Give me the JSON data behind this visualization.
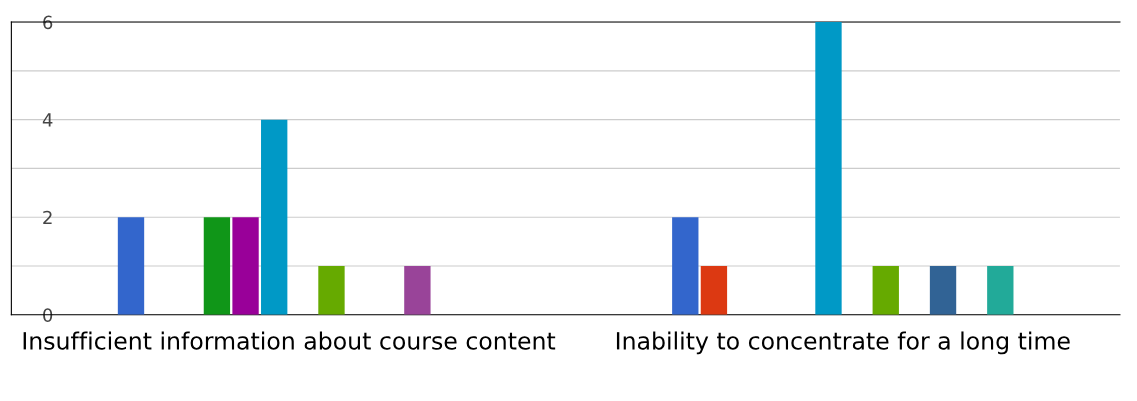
{
  "chart_data": {
    "type": "bar",
    "categories": [
      "Insufficient information about course content",
      "Inability to concentrate for a long time"
    ],
    "series": [
      {
        "color": "#3366cc",
        "values": [
          2,
          2
        ]
      },
      {
        "color": "#dc3912",
        "values": [
          0,
          1
        ]
      },
      {
        "color": "#ff9900",
        "values": [
          0,
          0
        ]
      },
      {
        "color": "#109618",
        "values": [
          2,
          0
        ]
      },
      {
        "color": "#990099",
        "values": [
          2,
          0
        ]
      },
      {
        "color": "#0099c6",
        "values": [
          4,
          6
        ]
      },
      {
        "color": "#dd4477",
        "values": [
          0,
          0
        ]
      },
      {
        "color": "#66aa00",
        "values": [
          1,
          1
        ]
      },
      {
        "color": "#b82e2e",
        "values": [
          0,
          0
        ]
      },
      {
        "color": "#316395",
        "values": [
          0,
          1
        ]
      },
      {
        "color": "#994499",
        "values": [
          1,
          0
        ]
      },
      {
        "color": "#22aa99",
        "values": [
          0,
          1
        ]
      }
    ],
    "ylim": [
      0,
      6
    ],
    "yticks": [
      0,
      {
        "value": 1,
        "label": null
      },
      2,
      {
        "value": 3,
        "label": null
      },
      4,
      {
        "value": 5,
        "label": null
      },
      6
    ],
    "grid": "y",
    "legend": false
  }
}
